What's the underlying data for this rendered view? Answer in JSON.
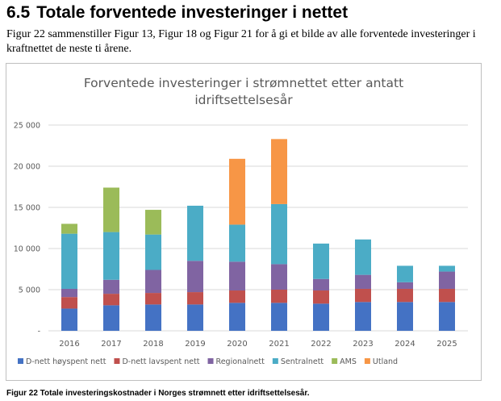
{
  "section": {
    "number": "6.5",
    "title": "Totale forventede investeringer i nettet"
  },
  "intro_text": "Figur 22 sammenstiller Figur 13, Figur 18 og Figur 21 for å gi et bilde av alle forventede investeringer i kraftnettet de neste ti årene.",
  "caption": "Figur 22 Totale investeringskostnader i Norges strømnett etter idriftsettelsesår.",
  "colors": {
    "d_nett_hoyspent": "#4472c4",
    "d_nett_lavspent": "#c0504d",
    "regionalnett": "#8064a2",
    "sentralnett": "#4bacc6",
    "ams": "#9bbb59",
    "utland": "#f79646"
  },
  "chart_data": {
    "type": "bar",
    "stacked": true,
    "title": "Forventede investeringer i strømnettet etter antatt idriftsettelsesår",
    "title_lines": [
      "Forventede investeringer i strømnettet etter antatt",
      "idriftsettelsesår"
    ],
    "xlabel": "",
    "ylabel": "",
    "ylim": [
      0,
      25000
    ],
    "yticks": [
      0,
      5000,
      10000,
      15000,
      20000,
      25000
    ],
    "ytick_labels": [
      "-",
      "5 000",
      "10 000",
      "15 000",
      "20 000",
      "25 000"
    ],
    "grid": true,
    "legend_position": "bottom",
    "categories": [
      "2016",
      "2017",
      "2018",
      "2019",
      "2020",
      "2021",
      "2022",
      "2023",
      "2024",
      "2025"
    ],
    "series": [
      {
        "name": "D-nett høyspent nett",
        "color": "#4472c4",
        "values": [
          2700,
          3100,
          3200,
          3200,
          3400,
          3400,
          3300,
          3500,
          3500,
          3500
        ]
      },
      {
        "name": "D-nett lavspent nett",
        "color": "#c0504d",
        "values": [
          1400,
          1400,
          1400,
          1500,
          1500,
          1600,
          1600,
          1600,
          1600,
          1600
        ]
      },
      {
        "name": "Regionalnett",
        "color": "#8064a2",
        "values": [
          1000,
          1700,
          2800,
          3800,
          3500,
          3100,
          1400,
          1700,
          800,
          2100
        ]
      },
      {
        "name": "Sentralnett",
        "color": "#4bacc6",
        "values": [
          6700,
          5800,
          4300,
          6700,
          4500,
          7300,
          4300,
          4300,
          2000,
          700
        ]
      },
      {
        "name": "AMS",
        "color": "#9bbb59",
        "values": [
          1200,
          5400,
          3000,
          0,
          0,
          0,
          0,
          0,
          0,
          0
        ]
      },
      {
        "name": "Utland",
        "color": "#f79646",
        "values": [
          0,
          0,
          0,
          0,
          8000,
          7900,
          0,
          0,
          0,
          0
        ]
      }
    ]
  }
}
